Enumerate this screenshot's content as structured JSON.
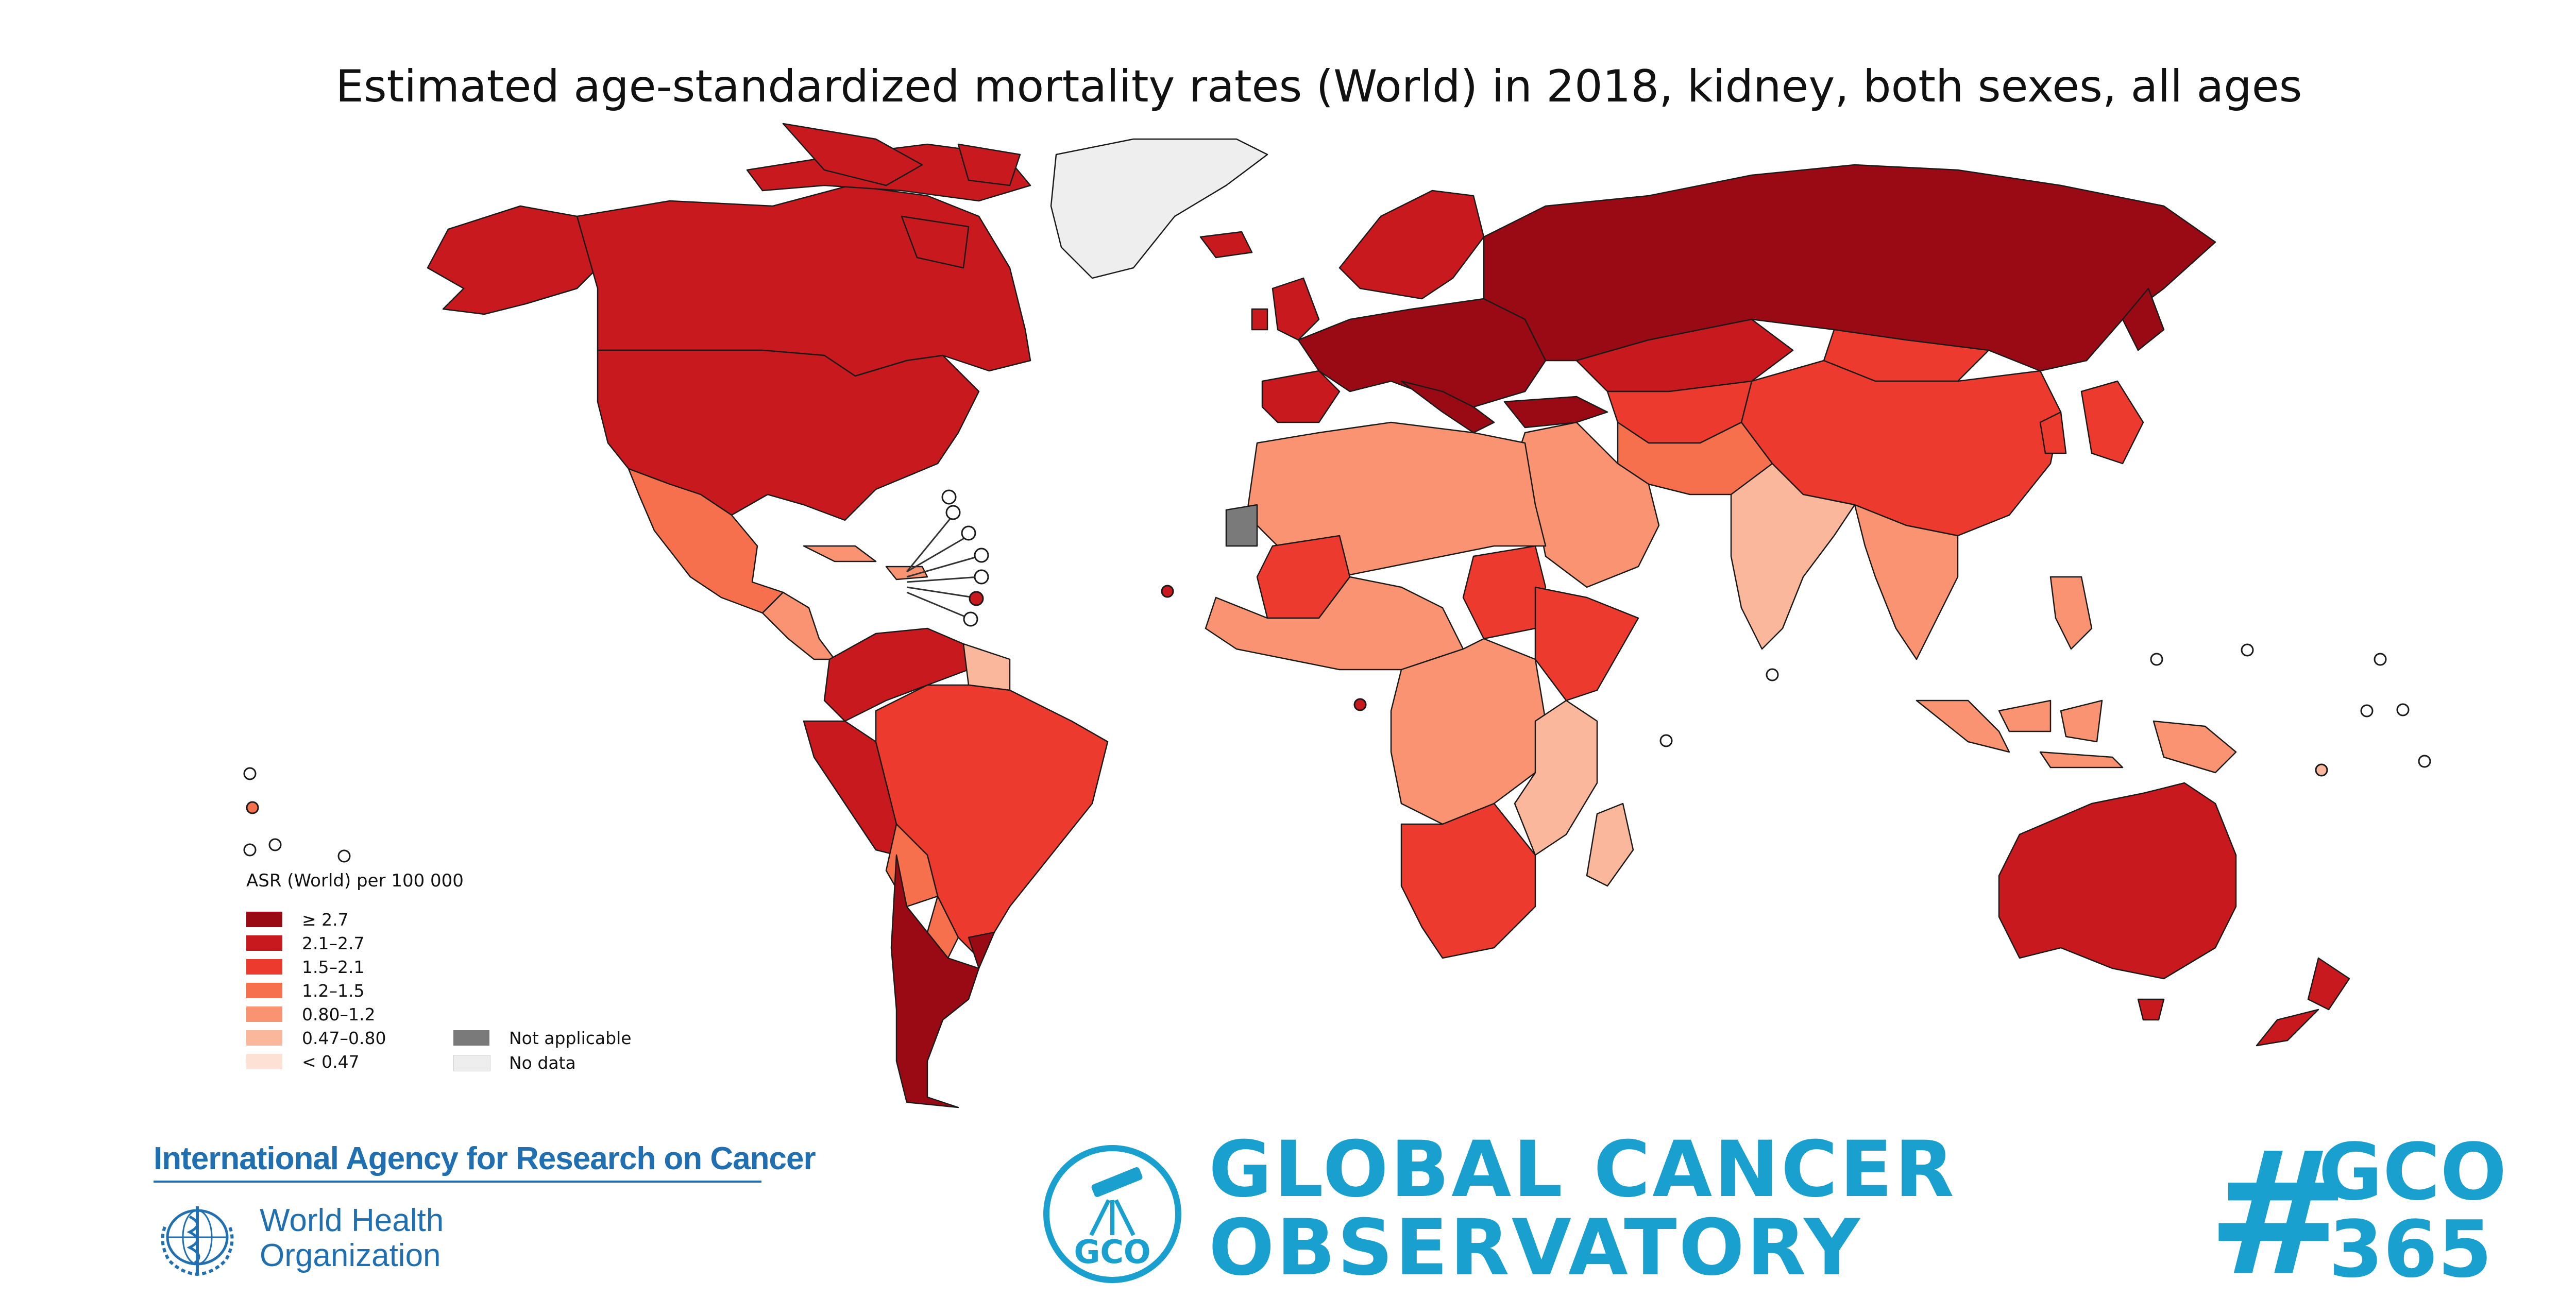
{
  "title": "Estimated age-standardized mortality rates (World) in 2018, kidney, both sexes, all ages",
  "legend": {
    "title": "ASR (World) per 100 000",
    "classes": [
      {
        "label": "≥ 2.7",
        "color": "#9a0a14"
      },
      {
        "label": "2.1–2.7",
        "color": "#c8191e"
      },
      {
        "label": "1.5–2.1",
        "color": "#ec3b2e"
      },
      {
        "label": "1.2–1.5",
        "color": "#f6704d"
      },
      {
        "label": "0.80–1.2",
        "color": "#f99371"
      },
      {
        "label": "0.47–0.80",
        "color": "#fbb79c"
      },
      {
        "label": "< 0.47",
        "color": "#fde1d4"
      }
    ],
    "special": [
      {
        "label": "Not applicable",
        "color": "#7a7a7a"
      },
      {
        "label": "No data",
        "color": "#eeeeee"
      }
    ]
  },
  "regions": {
    "canada": "2.1–2.7",
    "usa": "2.1–2.7",
    "alaska": "2.1–2.7",
    "greenland": "No data",
    "mexico": "1.2–1.5",
    "central_america": "0.80–1.2",
    "caribbean": "0.80–1.2",
    "colombia_venezuela": "2.1–2.7",
    "guianas": "0.47–0.80",
    "ecuador_peru": "2.1–2.7",
    "brazil": "1.5–2.1",
    "bolivia": "1.2–1.5",
    "paraguay": "1.2–1.5",
    "argentina_chile": "≥ 2.7",
    "uruguay": "≥ 2.7",
    "western_europe": "≥ 2.7",
    "iberia": "2.1–2.7",
    "uk_ireland": "2.1–2.7",
    "scandinavia": "2.1–2.7",
    "iceland": "2.1–2.7",
    "russia": "≥ 2.7",
    "kazakhstan": "2.1–2.7",
    "central_asia": "1.5–2.1",
    "china": "1.5–2.1",
    "mongolia": "1.5–2.1",
    "japan_korea": "1.5–2.1",
    "middle_east": "0.80–1.2",
    "iran_afghanistan": "1.2–1.5",
    "india": "0.47–0.80",
    "southeast_asia": "0.80–1.2",
    "indonesia": "0.80–1.2",
    "north_africa": "0.80–1.2",
    "western_sahara": "Not applicable",
    "mali": "1.5–2.1",
    "sudan": "1.5–2.1",
    "horn_of_africa": "1.5–2.1",
    "central_africa": "0.80–1.2",
    "east_africa": "0.47–0.80",
    "southern_africa": "1.5–2.1",
    "madagascar": "0.47–0.80",
    "australia": "2.1–2.7",
    "new_zealand": "2.1–2.7",
    "png": "0.80–1.2"
  },
  "footer": {
    "iarc": "International Agency for Research on Cancer",
    "who_line1": "World Health",
    "who_line2": "Organization",
    "gco_emblem_text": "GCO",
    "gco_line1": "GLOBAL CANCER",
    "gco_line2": "OBSERVATORY",
    "tag_hash": "#",
    "tag_line1": "GCO",
    "tag_line2": "365"
  }
}
